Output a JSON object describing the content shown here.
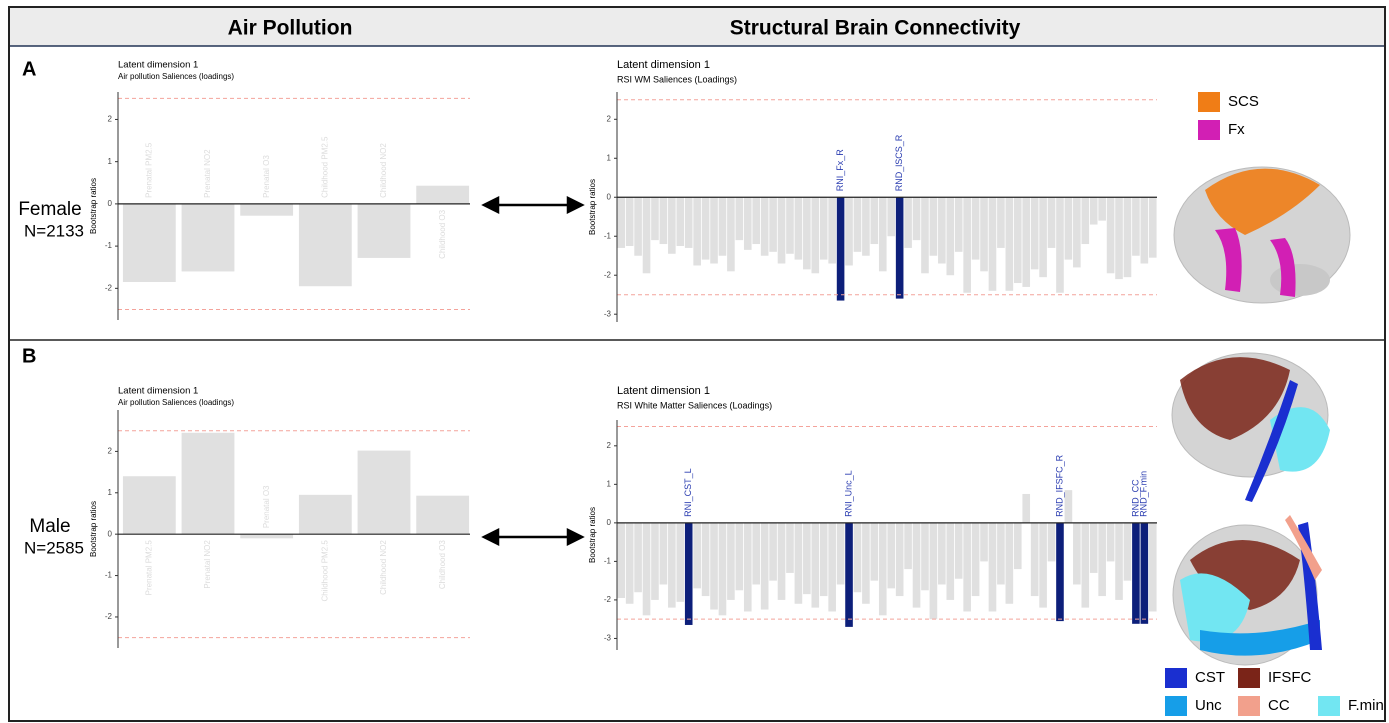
{
  "header": {
    "left": "Air Pollution",
    "right": "Structural Brain Connectivity"
  },
  "panels": [
    {
      "label": "A",
      "group": "Female",
      "n": "N=2133",
      "legend": [
        {
          "name": "SCS",
          "color": "#f07d16"
        },
        {
          "name": "Fx",
          "color": "#d21fb4"
        }
      ]
    },
    {
      "label": "B",
      "group": "Male",
      "n": "N=2585",
      "legend": [
        {
          "name": "CST",
          "color": "#1a2fd0"
        },
        {
          "name": "IFSFC",
          "color": "#7a2418"
        },
        {
          "name": "Unc",
          "color": "#169ee8"
        },
        {
          "name": "CC",
          "color": "#f2a08c"
        },
        {
          "name": "F.min",
          "color": "#72e6f2"
        }
      ]
    }
  ],
  "chart_data": [
    {
      "type": "bar",
      "title": "Latent dimension 1",
      "subtitle": "Air pollution Saliences (loadings)",
      "y_label": "Bootstrap ratios",
      "categories": [
        "Prenatal PM2.5",
        "Prenatal NO2",
        "Prenatal O3",
        "Childhood PM2.5",
        "Childhood NO2",
        "Childhood O3"
      ],
      "values": [
        -1.85,
        -1.6,
        -0.28,
        -1.95,
        -1.28,
        0.43
      ],
      "bar_color": "#e0e0e0",
      "label_color": "#dcdcdc",
      "ylim": [
        -2.75,
        2.65
      ],
      "yticks": [
        -2,
        -1,
        0,
        1,
        2
      ],
      "threshold_lines": [
        -2.5,
        2.5
      ],
      "threshold_color": "#f4a39b"
    },
    {
      "type": "bar",
      "title": "Latent dimension 1",
      "subtitle": "RSI WM Saliences (Loadings)",
      "y_label": "Bootstrap ratios",
      "categories": [
        null,
        null,
        null,
        null,
        null,
        null,
        null,
        null,
        null,
        null,
        null,
        null,
        null,
        null,
        null,
        null,
        null,
        null,
        null,
        null,
        null,
        null,
        null,
        null,
        null,
        null,
        "RNI_Fx_R",
        null,
        null,
        null,
        null,
        null,
        null,
        "RND_lSCS_R",
        null,
        null,
        null,
        null,
        null,
        null,
        null,
        null,
        null,
        null,
        null,
        null,
        null,
        null,
        null,
        null,
        null,
        null,
        null,
        null,
        null,
        null,
        null,
        null,
        null,
        null,
        null,
        null,
        null,
        null
      ],
      "values": [
        -1.3,
        -1.25,
        -1.5,
        -1.95,
        -1.1,
        -1.2,
        -1.45,
        -1.25,
        -1.3,
        -1.75,
        -1.6,
        -1.7,
        -1.5,
        -1.9,
        -1.1,
        -1.35,
        -1.2,
        -1.5,
        -1.4,
        -1.7,
        -1.45,
        -1.6,
        -1.85,
        -1.95,
        -1.6,
        -1.7,
        -2.65,
        -1.75,
        -1.4,
        -1.5,
        -1.2,
        -1.9,
        -1.0,
        -2.6,
        -1.3,
        -1.1,
        -1.95,
        -1.5,
        -1.7,
        -2.0,
        -1.4,
        -2.45,
        -1.6,
        -1.9,
        -2.4,
        -1.3,
        -2.4,
        -2.2,
        -2.3,
        -1.85,
        -2.05,
        -1.3,
        -2.45,
        -1.6,
        -1.8,
        -1.2,
        -0.7,
        -0.6,
        -1.95,
        -2.1,
        -2.05,
        -1.5,
        -1.7,
        -1.55
      ],
      "bar_color": "#e0e0e0",
      "highlight_color": "#0d1f7a",
      "label_color": "#2a3cb0",
      "ylim": [
        -3.2,
        2.7
      ],
      "yticks": [
        -3,
        -2,
        -1,
        0,
        1,
        2
      ],
      "threshold_lines": [
        -2.5,
        2.5
      ],
      "threshold_color": "#f4a39b"
    },
    {
      "type": "bar",
      "title": "Latent dimension 1",
      "subtitle": "Air pollution Saliences (loadings)",
      "y_label": "Bootstrap ratios",
      "categories": [
        "Prenatal PM2.5",
        "Prenatal NO2",
        "Prenatal O3",
        "Childhood PM2.5",
        "Childhood NO2",
        "Childhood O3"
      ],
      "values": [
        1.4,
        2.45,
        -0.1,
        0.95,
        2.02,
        0.93
      ],
      "bar_color": "#e0e0e0",
      "label_color": "#dcdcdc",
      "ylim": [
        -2.75,
        3.0
      ],
      "yticks": [
        -2,
        -1,
        0,
        1,
        2
      ],
      "threshold_lines": [
        -2.5,
        2.5
      ],
      "threshold_color": "#f4a39b"
    },
    {
      "type": "bar",
      "title": "Latent dimension 1",
      "subtitle": "RSI White Matter Saliences (Loadings)",
      "y_label": "Bootstrap ratios",
      "categories": [
        null,
        null,
        null,
        null,
        null,
        null,
        null,
        null,
        "RNI_CST_L",
        null,
        null,
        null,
        null,
        null,
        null,
        null,
        null,
        null,
        null,
        null,
        null,
        null,
        null,
        null,
        null,
        null,
        null,
        "RNI_Unc_L",
        null,
        null,
        null,
        null,
        null,
        null,
        null,
        null,
        null,
        null,
        null,
        null,
        null,
        null,
        null,
        null,
        null,
        null,
        null,
        null,
        null,
        null,
        null,
        null,
        "RND_IFSFC_R",
        null,
        null,
        null,
        null,
        null,
        null,
        null,
        null,
        "RND_CC",
        "RND_F.min",
        null
      ],
      "values": [
        -1.95,
        -2.1,
        -1.8,
        -2.4,
        -2.0,
        -1.6,
        -2.2,
        -2.05,
        -2.65,
        -1.7,
        -1.9,
        -2.25,
        -2.4,
        -2.0,
        -1.75,
        -2.3,
        -1.6,
        -2.25,
        -1.5,
        -2.0,
        -1.3,
        -2.1,
        -1.85,
        -2.2,
        -1.9,
        -2.3,
        -1.6,
        -2.7,
        -1.8,
        -2.1,
        -1.5,
        -2.4,
        -1.7,
        -1.9,
        -1.2,
        -2.2,
        -1.75,
        -2.5,
        -1.6,
        -2.0,
        -1.45,
        -2.3,
        -1.9,
        -1.0,
        -2.3,
        -1.6,
        -2.1,
        -1.2,
        0.75,
        -1.9,
        -2.2,
        -1.0,
        -2.55,
        0.85,
        -1.6,
        -2.2,
        -1.3,
        -1.9,
        -1.0,
        -2.0,
        -1.5,
        -2.62,
        -2.62,
        -2.3
      ],
      "bar_color": "#e0e0e0",
      "highlight_color": "#0d1f7a",
      "label_color": "#2a3cb0",
      "ylim": [
        -3.3,
        2.67
      ],
      "yticks": [
        -3,
        -2,
        -1,
        0,
        1,
        2
      ],
      "threshold_lines": [
        -2.5,
        2.5
      ],
      "threshold_color": "#f4a39b"
    }
  ]
}
